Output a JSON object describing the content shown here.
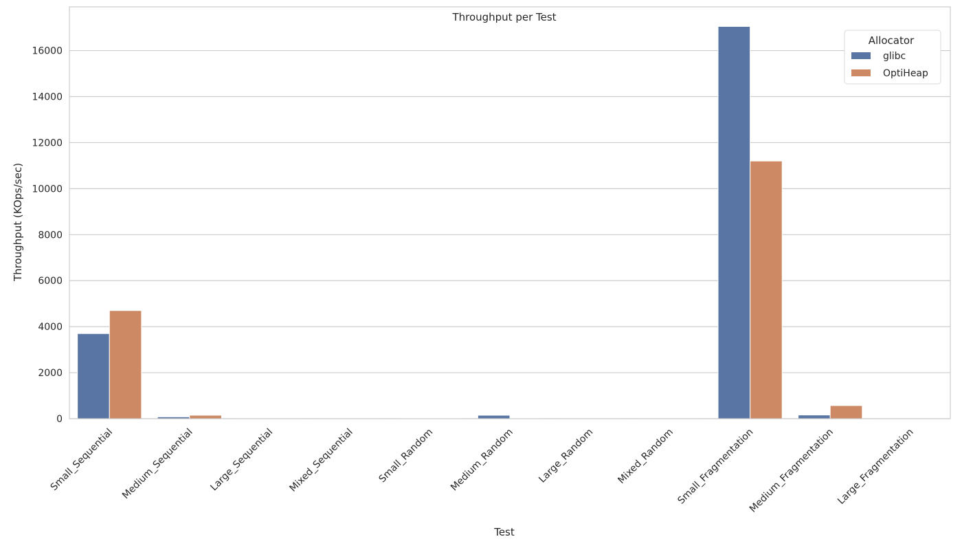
{
  "chart_data": {
    "type": "bar",
    "title": "Throughput per Test",
    "xlabel": "Test",
    "ylabel": "Throughput (KOps/sec)",
    "ylim": [
      0,
      17900
    ],
    "yticks": [
      0,
      2000,
      4000,
      6000,
      8000,
      10000,
      12000,
      14000,
      16000
    ],
    "grid": "horizontal",
    "legend": {
      "title": "Allocator",
      "placement": "top-right"
    },
    "categories": [
      "Small_Sequential",
      "Medium_Sequential",
      "Large_Sequential",
      "Mixed_Sequential",
      "Small_Random",
      "Medium_Random",
      "Large_Random",
      "Mixed_Random",
      "Small_Fragmentation",
      "Medium_Fragmentation",
      "Large_Fragmentation"
    ],
    "series": [
      {
        "name": "glibc",
        "color": "#5875a4",
        "values": [
          3700,
          80,
          5,
          5,
          30,
          150,
          5,
          5,
          17050,
          160,
          5
        ]
      },
      {
        "name": "OptiHeap",
        "color": "#cc8963",
        "values": [
          4700,
          150,
          5,
          5,
          30,
          20,
          5,
          5,
          11200,
          570,
          5
        ]
      }
    ]
  }
}
